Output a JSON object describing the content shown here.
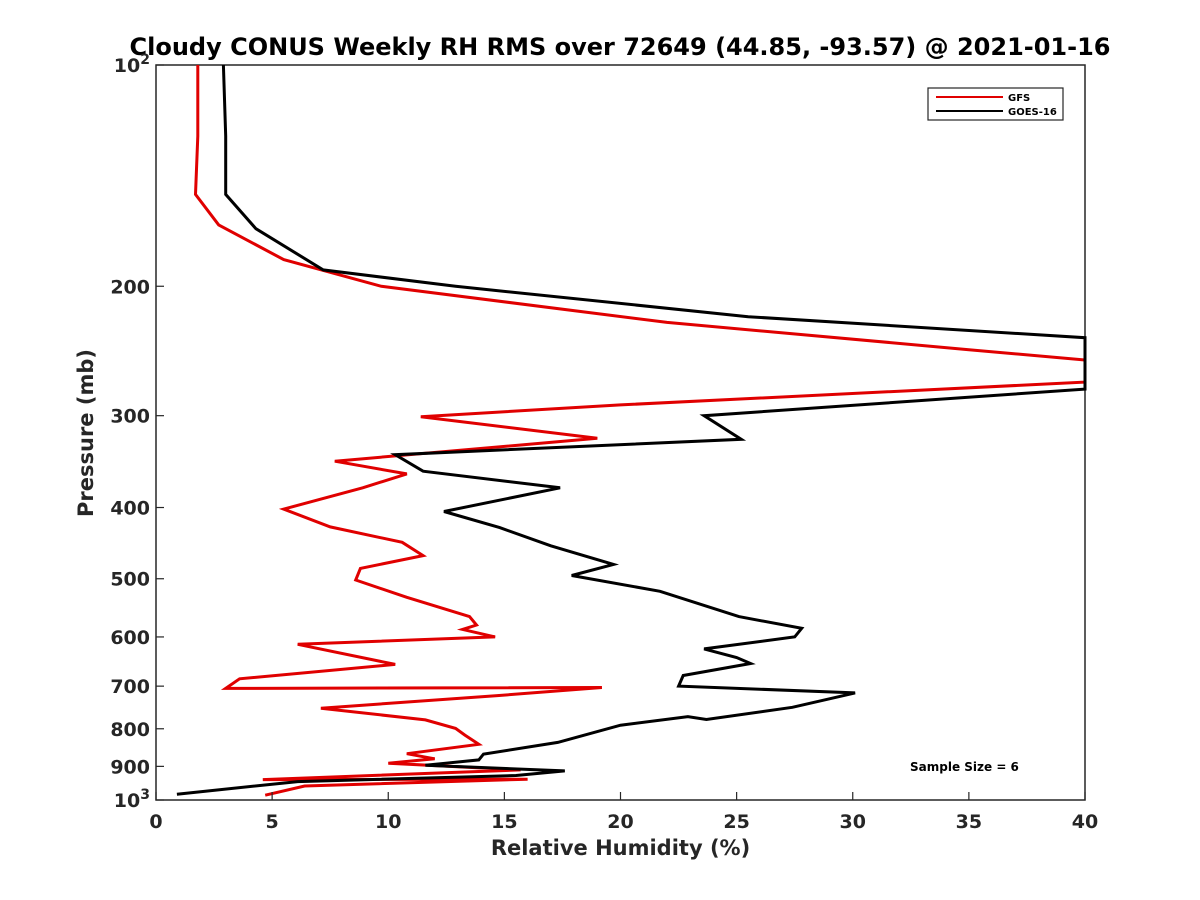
{
  "chart_data": {
    "type": "line",
    "title": "Cloudy CONUS Weekly RH RMS over 72649 (44.85, -93.57) @ 2021-01-16",
    "xlabel": "Relative Humidity (%)",
    "ylabel": "Pressure (mb)",
    "xlim": [
      0,
      40
    ],
    "ylim": [
      100,
      1000
    ],
    "y_scale": "log",
    "y_reversed": true,
    "grid": false,
    "legend_position": "top-right",
    "x_ticks": [
      "0",
      "5",
      "10",
      "15",
      "20",
      "25",
      "30",
      "35",
      "40"
    ],
    "y_ticks": [
      {
        "value": 100,
        "base": "10",
        "exp": "2"
      },
      {
        "value": 200,
        "label": "200"
      },
      {
        "value": 300,
        "label": "300"
      },
      {
        "value": 400,
        "label": "400"
      },
      {
        "value": 500,
        "label": "500"
      },
      {
        "value": 600,
        "label": "600"
      },
      {
        "value": 700,
        "label": "700"
      },
      {
        "value": 800,
        "label": "800"
      },
      {
        "value": 900,
        "label": "900"
      },
      {
        "value": 1000,
        "base": "10",
        "exp": "3"
      }
    ],
    "series": [
      {
        "name": "GFS",
        "color": "#e00000",
        "points": [
          [
            1.8,
            100
          ],
          [
            1.8,
            125
          ],
          [
            1.7,
            150
          ],
          [
            2.7,
            165
          ],
          [
            5.5,
            184
          ],
          [
            9.7,
            200
          ],
          [
            22,
            224
          ],
          [
            35,
            244
          ],
          [
            40,
            252
          ],
          [
            40,
            270
          ],
          [
            20,
            290
          ],
          [
            11.4,
            301
          ],
          [
            19,
            322
          ],
          [
            7.7,
            346
          ],
          [
            10.8,
            360
          ],
          [
            8.9,
            376
          ],
          [
            5.5,
            402
          ],
          [
            7.5,
            425
          ],
          [
            10.6,
            446
          ],
          [
            11.5,
            465
          ],
          [
            8.8,
            484
          ],
          [
            8.6,
            502
          ],
          [
            10.8,
            530
          ],
          [
            13.5,
            563
          ],
          [
            13.8,
            578
          ],
          [
            13.2,
            586
          ],
          [
            14.6,
            600
          ],
          [
            6.1,
            614
          ],
          [
            10.3,
            654
          ],
          [
            3.6,
            684
          ],
          [
            3.0,
            705
          ],
          [
            19.2,
            703
          ],
          [
            14.7,
            721
          ],
          [
            7.1,
            750
          ],
          [
            11.6,
            778
          ],
          [
            12.9,
            799
          ],
          [
            13.3,
            816
          ],
          [
            13.9,
            840
          ],
          [
            10.8,
            865
          ],
          [
            12.0,
            879
          ],
          [
            10.0,
            891
          ],
          [
            15.7,
            910
          ],
          [
            4.6,
            938
          ],
          [
            16.0,
            937
          ],
          [
            6.4,
            957
          ],
          [
            4.7,
            985
          ]
        ]
      },
      {
        "name": "GOES-16",
        "color": "#000000",
        "points": [
          [
            2.9,
            100
          ],
          [
            3.0,
            125
          ],
          [
            3.0,
            150
          ],
          [
            4.3,
            167
          ],
          [
            7.2,
            190
          ],
          [
            12.9,
            200
          ],
          [
            25.5,
            220
          ],
          [
            40,
            235
          ],
          [
            40,
            276
          ],
          [
            23.6,
            300
          ],
          [
            25.2,
            323
          ],
          [
            10.3,
            339
          ],
          [
            11.5,
            357
          ],
          [
            17.4,
            376
          ],
          [
            12.4,
            405
          ],
          [
            14.8,
            426
          ],
          [
            17.0,
            451
          ],
          [
            19.7,
            478
          ],
          [
            17.9,
            495
          ],
          [
            21.7,
            520
          ],
          [
            25.1,
            563
          ],
          [
            27.8,
            584
          ],
          [
            27.5,
            600
          ],
          [
            23.6,
            623
          ],
          [
            25.0,
            640
          ],
          [
            25.6,
            652
          ],
          [
            22.7,
            677
          ],
          [
            22.5,
            700
          ],
          [
            30.1,
            715
          ],
          [
            27.4,
            748
          ],
          [
            23.7,
            777
          ],
          [
            22.9,
            770
          ],
          [
            20.0,
            791
          ],
          [
            17.3,
            835
          ],
          [
            14.1,
            866
          ],
          [
            13.9,
            882
          ],
          [
            11.6,
            897
          ],
          [
            17.6,
            913
          ],
          [
            15.5,
            926
          ],
          [
            6.1,
            944
          ],
          [
            0.9,
            982
          ]
        ]
      }
    ],
    "annotations": [
      "Sample Size = 6"
    ]
  }
}
